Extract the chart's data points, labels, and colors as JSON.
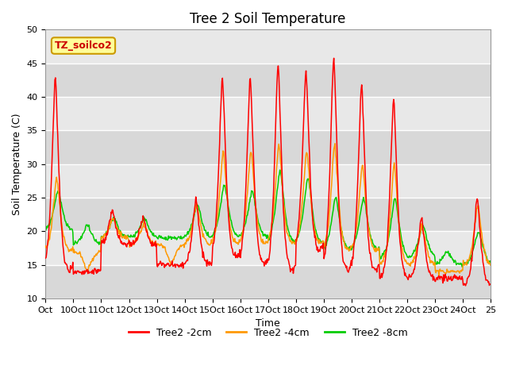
{
  "title": "Tree 2 Soil Temperature",
  "xlabel": "Time",
  "ylabel": "Soil Temperature (C)",
  "ylim": [
    10,
    50
  ],
  "xlim": [
    0,
    16
  ],
  "xtick_labels": [
    "Oct",
    "10Oct",
    "11Oct",
    "12Oct",
    "13Oct",
    "14Oct",
    "15Oct",
    "16Oct",
    "17Oct",
    "18Oct",
    "19Oct",
    "20Oct",
    "21Oct",
    "22Oct",
    "23Oct",
    "24Oct",
    "25"
  ],
  "legend_labels": [
    "Tree2 -2cm",
    "Tree2 -4cm",
    "Tree2 -8cm"
  ],
  "line_colors": [
    "#ff0000",
    "#ff9900",
    "#00cc00"
  ],
  "annotation_text": "TZ_soilco2",
  "annotation_bg": "#ffff99",
  "annotation_border": "#cc9900",
  "bg_color": "#e8e8e8",
  "grid_color": "#ffffff",
  "title_fontsize": 12,
  "axis_label_fontsize": 9,
  "tick_fontsize": 8,
  "n_points_per_day": 48,
  "n_days": 16,
  "red_peaks": [
    43,
    14,
    23,
    22,
    15,
    25,
    43,
    43,
    45,
    44,
    46,
    42,
    40,
    22,
    13,
    25
  ],
  "red_troughs": [
    14,
    14,
    18,
    18,
    15,
    15,
    16,
    15,
    14,
    17,
    14,
    14,
    13,
    13,
    13,
    12
  ],
  "red_peak_pos": [
    0.35,
    0.5,
    0.4,
    0.5,
    0.5,
    0.4,
    0.35,
    0.35,
    0.35,
    0.35,
    0.35,
    0.35,
    0.5,
    0.5,
    0.35,
    0.5
  ],
  "orange_peaks": [
    28,
    14,
    22,
    21,
    15,
    24,
    32,
    32,
    33,
    32,
    33,
    30,
    30,
    21,
    14,
    24
  ],
  "orange_troughs": [
    17,
    17,
    19,
    18,
    18,
    18,
    18,
    18,
    18,
    18,
    17,
    17,
    15,
    15,
    14,
    15
  ],
  "orange_peak_pos": [
    0.4,
    0.5,
    0.42,
    0.52,
    0.52,
    0.42,
    0.38,
    0.38,
    0.38,
    0.38,
    0.38,
    0.38,
    0.52,
    0.52,
    0.38,
    0.52
  ],
  "green_peaks": [
    26,
    21,
    22,
    22,
    19,
    24,
    27,
    26,
    29,
    28,
    25,
    25,
    25,
    21,
    17,
    20
  ],
  "green_troughs": [
    20,
    18,
    19,
    19,
    19,
    19,
    19,
    19,
    18,
    18,
    17,
    17,
    16,
    16,
    15,
    15
  ],
  "green_peak_pos": [
    0.45,
    0.5,
    0.45,
    0.55,
    0.55,
    0.45,
    0.42,
    0.42,
    0.42,
    0.42,
    0.42,
    0.42,
    0.55,
    0.55,
    0.42,
    0.55
  ]
}
